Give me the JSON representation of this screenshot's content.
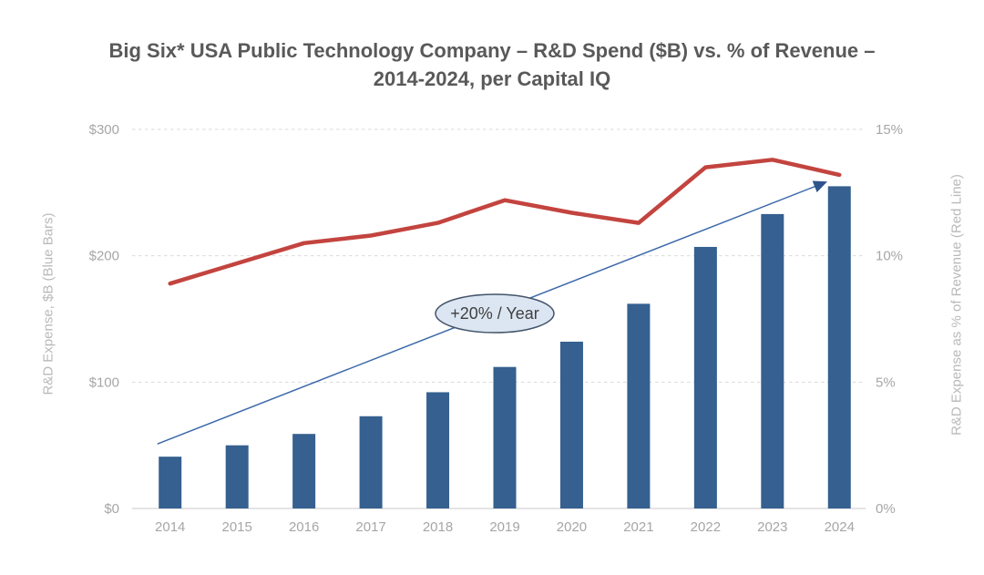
{
  "title": {
    "line1": "Big Six* USA Public Technology Company – R&D Spend ($B) vs. % of Revenue –",
    "line2": "2014-2024, per Capital IQ"
  },
  "chart_data": {
    "type": "bar",
    "subtype": "combo-bar-line-dual-axis",
    "categories": [
      "2014",
      "2015",
      "2016",
      "2017",
      "2018",
      "2019",
      "2020",
      "2021",
      "2022",
      "2023",
      "2024"
    ],
    "series": [
      {
        "name": "R&D Expense, $B",
        "render": "bar",
        "axis": "left",
        "values": [
          41,
          50,
          59,
          73,
          92,
          112,
          132,
          162,
          207,
          233,
          255
        ]
      },
      {
        "name": "R&D Expense as % of Revenue",
        "render": "line",
        "axis": "right",
        "values": [
          8.9,
          9.7,
          10.5,
          10.8,
          11.3,
          12.2,
          11.7,
          11.3,
          13.5,
          13.8,
          13.2
        ]
      }
    ],
    "left_axis": {
      "title": "R&D Expense, $B (Blue Bars)",
      "tick_values": [
        0,
        100,
        200,
        300
      ],
      "tick_labels": [
        "$0",
        "$100",
        "$200",
        "$300"
      ],
      "range": [
        0,
        300
      ]
    },
    "right_axis": {
      "title": "R&D Expense as % of Revenue (Red Line)",
      "tick_values": [
        0,
        5,
        10,
        15
      ],
      "tick_labels": [
        "0%",
        "5%",
        "10%",
        "15%"
      ],
      "range": [
        0,
        15
      ]
    },
    "grid": "horizontal-dashed",
    "legend": "none (series identified in axis titles)",
    "annotation": {
      "label": "+20% / Year",
      "shape": "ellipse-with-trend-arrow"
    }
  },
  "colors": {
    "bar_blue": "#35608F",
    "line_red": "#C3443F",
    "arrow_blue": "#3C69AA",
    "arrowhead_blue": "#2D548C",
    "ellipse_fill": "#DCE6F2",
    "ellipse_stroke": "#44546A",
    "annotation_text": "#404040",
    "title_text": "#595959",
    "tick_text": "#A6A6A6",
    "axis_title_text": "#B9B9B9",
    "gridline": "#D9D9D9",
    "baseline": "#D3D3D3"
  }
}
